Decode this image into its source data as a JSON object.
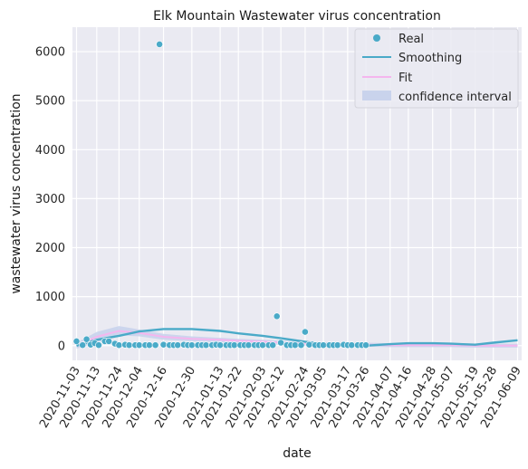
{
  "chart_data": {
    "type": "scatter",
    "title": "Elk Mountain Wastewater virus concentration",
    "xlabel": "date",
    "ylabel": "wastewater virus concentration",
    "x_start": "2020-11-01",
    "x_end": "2021-06-11",
    "ylim": [
      -300,
      6500
    ],
    "yticks": [
      0,
      1000,
      2000,
      3000,
      4000,
      5000,
      6000
    ],
    "xticks": [
      "2020-11-03",
      "2020-11-13",
      "2020-11-24",
      "2020-12-04",
      "2020-12-16",
      "2020-12-30",
      "2021-01-13",
      "2021-01-22",
      "2021-02-03",
      "2021-02-12",
      "2021-02-24",
      "2021-03-05",
      "2021-03-17",
      "2021-03-26",
      "2021-04-07",
      "2021-04-16",
      "2021-04-28",
      "2021-05-07",
      "2021-05-19",
      "2021-05-28",
      "2021-06-09"
    ],
    "grid": true,
    "legend_position": "top-right",
    "colors": {
      "real": "#4aaac8",
      "smoothing": "#4aaac8",
      "fit": "#f4b6ee",
      "ci": "#c9d3ec",
      "background": "#eaeaf2",
      "grid": "#ffffff"
    },
    "series": [
      {
        "name": "Real",
        "kind": "points",
        "points": [
          [
            "2020-11-03",
            90
          ],
          [
            "2020-11-06",
            10
          ],
          [
            "2020-11-08",
            130
          ],
          [
            "2020-11-10",
            20
          ],
          [
            "2020-11-12",
            50
          ],
          [
            "2020-11-14",
            10
          ],
          [
            "2020-11-17",
            90
          ],
          [
            "2020-11-19",
            90
          ],
          [
            "2020-11-22",
            40
          ],
          [
            "2020-11-24",
            10
          ],
          [
            "2020-11-27",
            20
          ],
          [
            "2020-11-29",
            10
          ],
          [
            "2020-12-02",
            10
          ],
          [
            "2020-12-04",
            10
          ],
          [
            "2020-12-07",
            10
          ],
          [
            "2020-12-09",
            10
          ],
          [
            "2020-12-12",
            10
          ],
          [
            "2020-12-14",
            6150
          ],
          [
            "2020-12-16",
            20
          ],
          [
            "2020-12-19",
            10
          ],
          [
            "2020-12-21",
            10
          ],
          [
            "2020-12-23",
            10
          ],
          [
            "2020-12-26",
            20
          ],
          [
            "2020-12-28",
            10
          ],
          [
            "2020-12-30",
            10
          ],
          [
            "2021-01-02",
            10
          ],
          [
            "2021-01-04",
            10
          ],
          [
            "2021-01-06",
            10
          ],
          [
            "2021-01-09",
            10
          ],
          [
            "2021-01-11",
            20
          ],
          [
            "2021-01-13",
            10
          ],
          [
            "2021-01-16",
            10
          ],
          [
            "2021-01-18",
            10
          ],
          [
            "2021-01-20",
            10
          ],
          [
            "2021-01-23",
            10
          ],
          [
            "2021-01-25",
            10
          ],
          [
            "2021-01-27",
            10
          ],
          [
            "2021-01-30",
            10
          ],
          [
            "2021-02-01",
            10
          ],
          [
            "2021-02-03",
            10
          ],
          [
            "2021-02-06",
            10
          ],
          [
            "2021-02-08",
            10
          ],
          [
            "2021-02-10",
            600
          ],
          [
            "2021-02-12",
            60
          ],
          [
            "2021-02-15",
            10
          ],
          [
            "2021-02-17",
            10
          ],
          [
            "2021-02-19",
            10
          ],
          [
            "2021-02-22",
            10
          ],
          [
            "2021-02-24",
            280
          ],
          [
            "2021-02-26",
            20
          ],
          [
            "2021-03-01",
            10
          ],
          [
            "2021-03-03",
            10
          ],
          [
            "2021-03-05",
            10
          ],
          [
            "2021-03-08",
            10
          ],
          [
            "2021-03-10",
            10
          ],
          [
            "2021-03-12",
            10
          ],
          [
            "2021-03-15",
            20
          ],
          [
            "2021-03-17",
            10
          ],
          [
            "2021-03-19",
            10
          ],
          [
            "2021-03-22",
            10
          ],
          [
            "2021-03-24",
            10
          ],
          [
            "2021-03-26",
            10
          ]
        ]
      },
      {
        "name": "Smoothing",
        "kind": "line",
        "points": [
          [
            "2020-11-03",
            0
          ],
          [
            "2020-11-13",
            120
          ],
          [
            "2020-11-24",
            200
          ],
          [
            "2020-12-04",
            290
          ],
          [
            "2020-12-16",
            340
          ],
          [
            "2020-12-30",
            340
          ],
          [
            "2021-01-13",
            300
          ],
          [
            "2021-01-22",
            250
          ],
          [
            "2021-02-03",
            200
          ],
          [
            "2021-02-12",
            150
          ],
          [
            "2021-02-24",
            80
          ],
          [
            "2021-03-05",
            30
          ],
          [
            "2021-03-17",
            10
          ],
          [
            "2021-03-26",
            0
          ],
          [
            "2021-04-07",
            30
          ],
          [
            "2021-04-16",
            50
          ],
          [
            "2021-04-28",
            50
          ],
          [
            "2021-05-07",
            40
          ],
          [
            "2021-05-19",
            20
          ],
          [
            "2021-05-28",
            60
          ],
          [
            "2021-06-09",
            110
          ]
        ]
      },
      {
        "name": "Fit",
        "kind": "line",
        "points": [
          [
            "2020-11-03",
            0
          ],
          [
            "2020-11-13",
            180
          ],
          [
            "2020-11-24",
            300
          ],
          [
            "2020-12-04",
            260
          ],
          [
            "2020-12-16",
            180
          ],
          [
            "2020-12-30",
            140
          ],
          [
            "2021-01-13",
            120
          ],
          [
            "2021-01-22",
            100
          ],
          [
            "2021-02-03",
            80
          ],
          [
            "2021-02-12",
            60
          ],
          [
            "2021-02-24",
            40
          ],
          [
            "2021-03-05",
            30
          ],
          [
            "2021-03-17",
            20
          ],
          [
            "2021-03-26",
            20
          ],
          [
            "2021-04-07",
            10
          ],
          [
            "2021-04-16",
            10
          ],
          [
            "2021-04-28",
            10
          ],
          [
            "2021-05-07",
            10
          ],
          [
            "2021-05-19",
            0
          ],
          [
            "2021-05-28",
            0
          ],
          [
            "2021-06-09",
            0
          ]
        ]
      },
      {
        "name": "confidence interval",
        "kind": "band",
        "points": [
          [
            "2020-11-03",
            -60,
            60
          ],
          [
            "2020-11-13",
            60,
            280
          ],
          [
            "2020-11-24",
            210,
            400
          ],
          [
            "2020-12-04",
            190,
            330
          ],
          [
            "2020-12-16",
            120,
            240
          ],
          [
            "2020-12-30",
            90,
            190
          ],
          [
            "2021-01-13",
            70,
            160
          ],
          [
            "2021-01-22",
            60,
            140
          ],
          [
            "2021-02-03",
            40,
            120
          ],
          [
            "2021-02-12",
            20,
            100
          ],
          [
            "2021-02-24",
            0,
            80
          ],
          [
            "2021-03-05",
            -10,
            70
          ],
          [
            "2021-03-17",
            -20,
            60
          ],
          [
            "2021-03-26",
            -20,
            60
          ],
          [
            "2021-04-07",
            -30,
            50
          ],
          [
            "2021-04-16",
            -30,
            50
          ],
          [
            "2021-04-28",
            -30,
            50
          ],
          [
            "2021-05-07",
            -30,
            50
          ],
          [
            "2021-05-19",
            -40,
            40
          ],
          [
            "2021-05-28",
            -40,
            40
          ],
          [
            "2021-06-09",
            -40,
            40
          ]
        ]
      }
    ]
  }
}
